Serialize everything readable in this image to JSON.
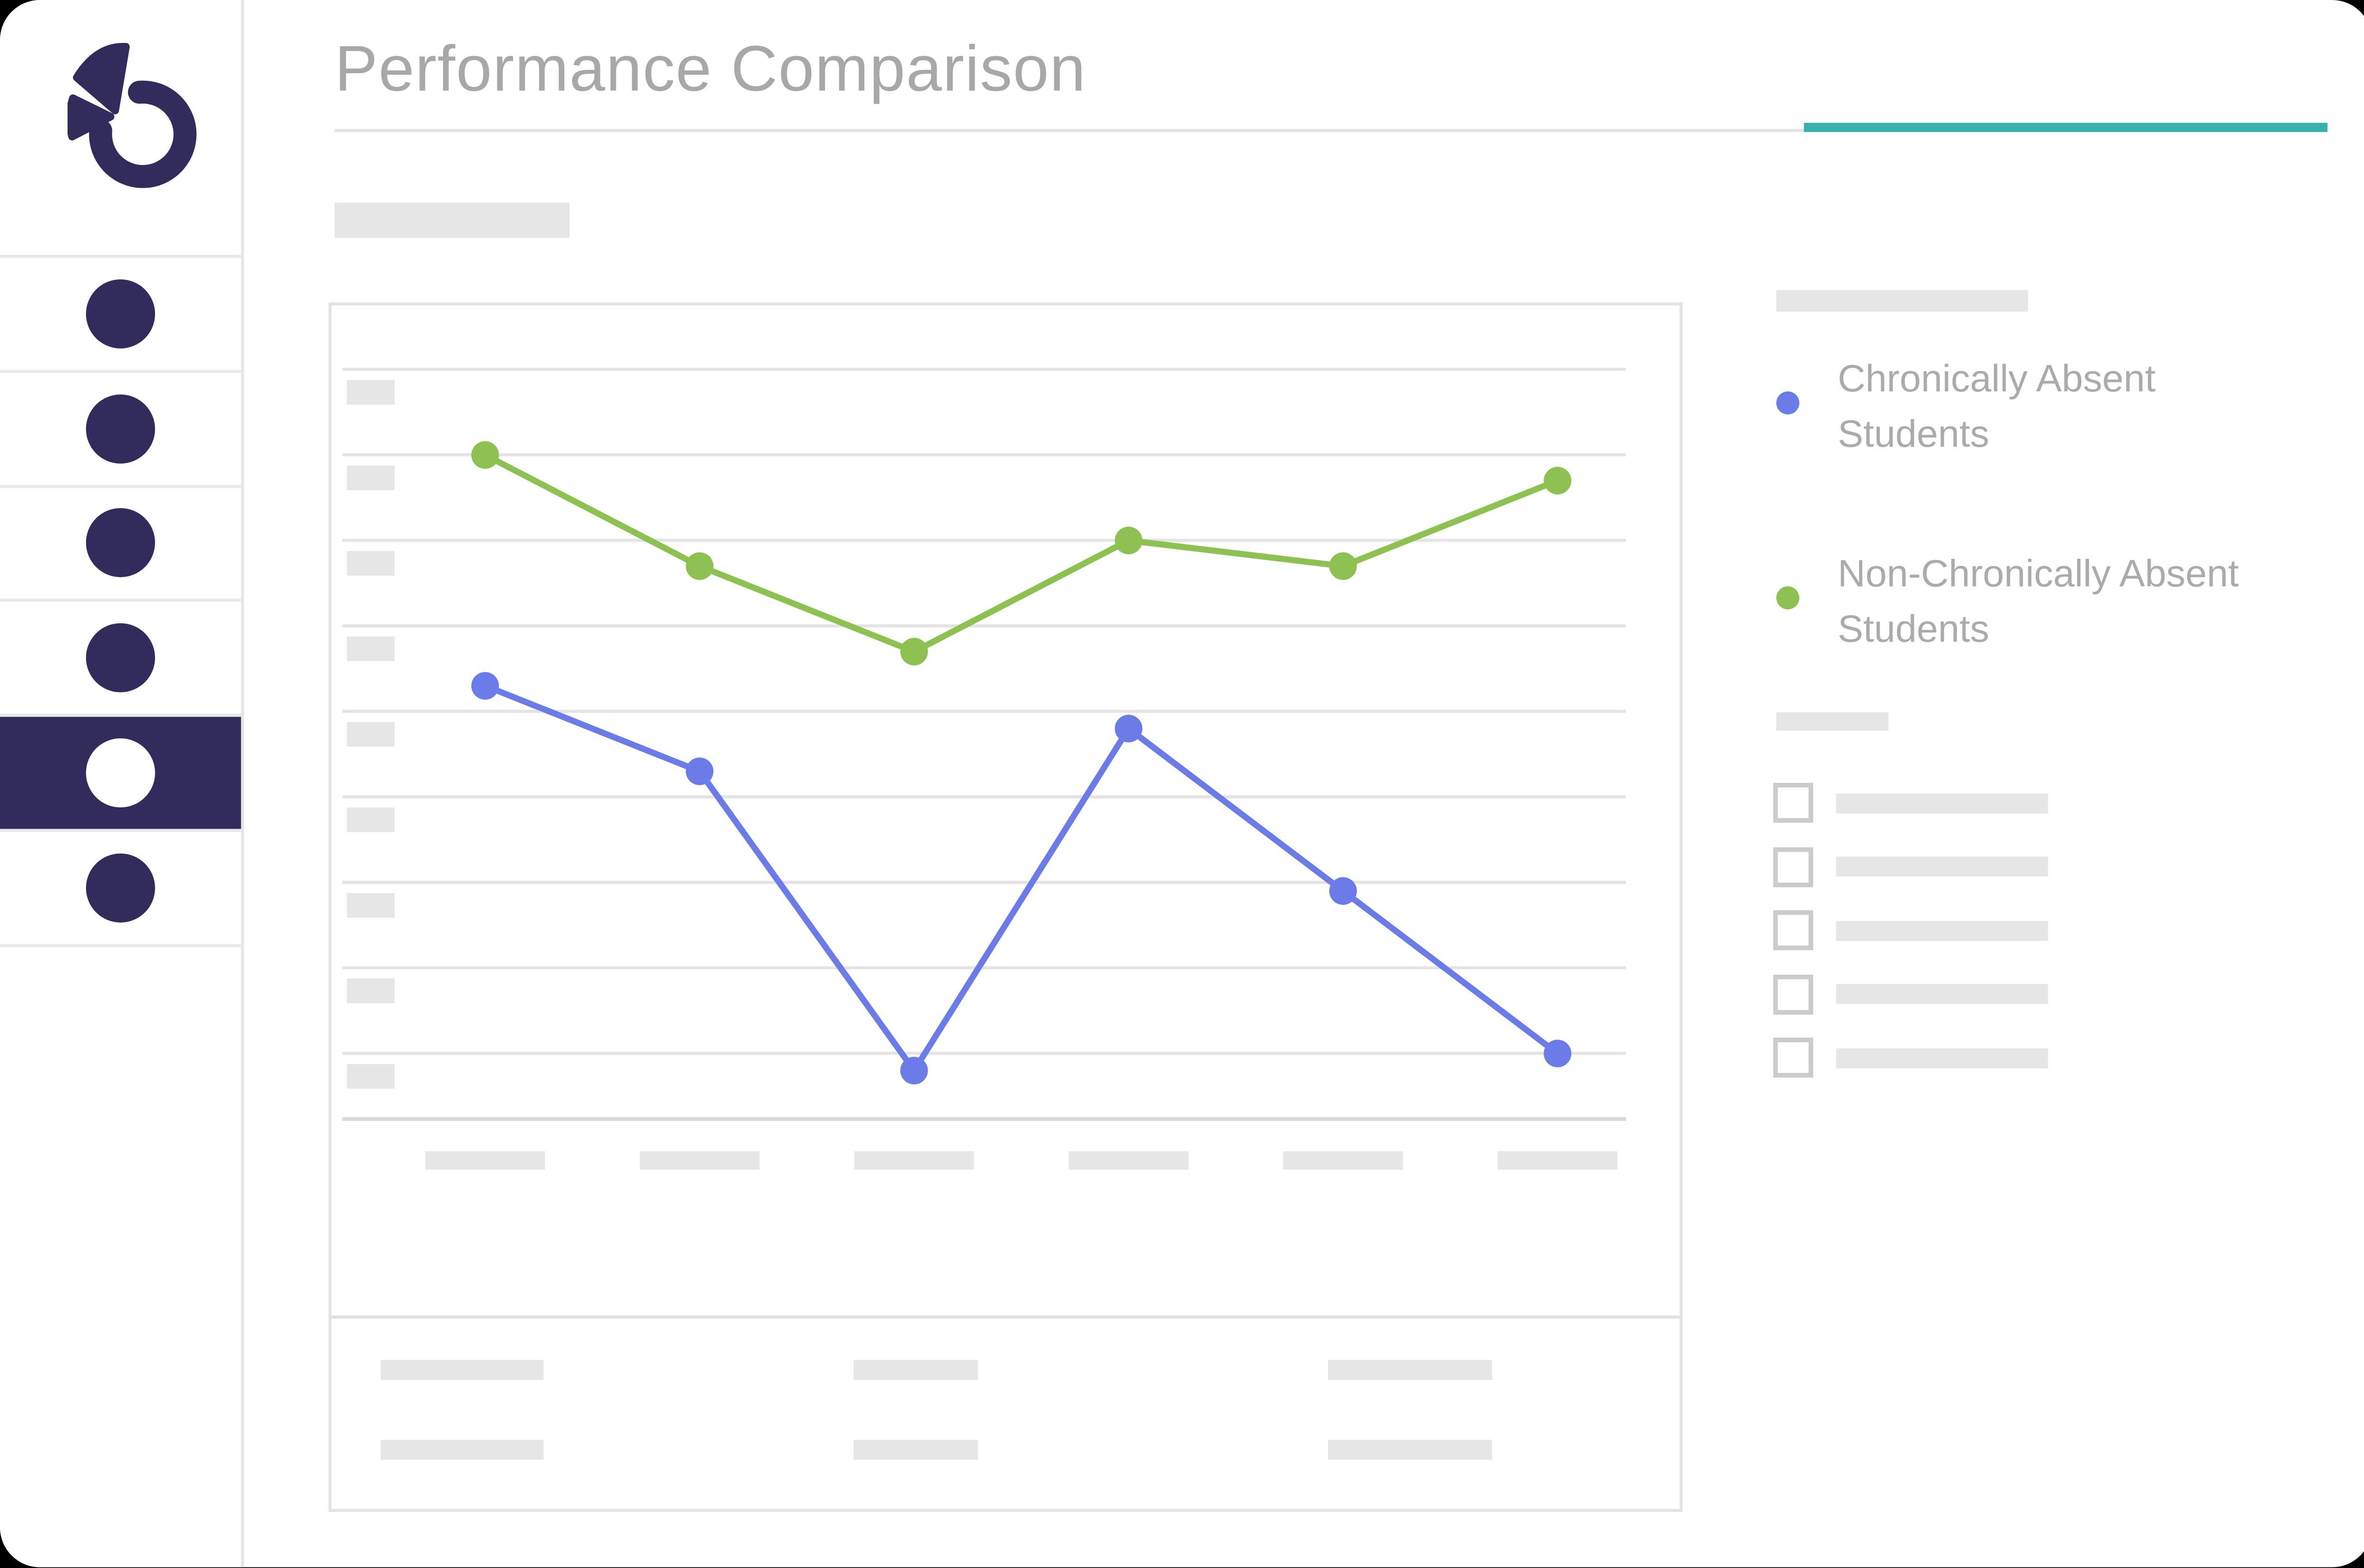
{
  "page": {
    "title": "Performance Comparison"
  },
  "header": {
    "title": "Performance Comparison"
  },
  "colors": {
    "brand_navy": "#322c5c",
    "accent_teal": "#39b0ab",
    "series_blue": "#6b7be8",
    "series_green": "#8dc152",
    "placeholder_gray": "#e6e6e6",
    "gridline_gray": "#e4e4e4",
    "text_gray": "#ababab",
    "title_gray": "#a8a8a8"
  },
  "sidebar": {
    "items": [
      {
        "id": "nav-1",
        "active": false
      },
      {
        "id": "nav-2",
        "active": false
      },
      {
        "id": "nav-3",
        "active": false
      },
      {
        "id": "nav-4",
        "active": false
      },
      {
        "id": "nav-5",
        "active": true
      },
      {
        "id": "nav-6",
        "active": false
      }
    ]
  },
  "filters": {
    "items": [
      {
        "checked": false
      },
      {
        "checked": false
      },
      {
        "checked": false
      },
      {
        "checked": false
      },
      {
        "checked": false
      }
    ]
  },
  "chart_data": {
    "type": "line",
    "title": "Performance Comparison",
    "categories": [
      "",
      "",
      "",
      "",
      "",
      ""
    ],
    "series": [
      {
        "name": "Chronically Absent Students",
        "color": "#6b7be8",
        "values": [
          53,
          43,
          8,
          48,
          29,
          10
        ]
      },
      {
        "name": "Non-Chronically Absent Students",
        "color": "#8dc152",
        "values": [
          80,
          67,
          57,
          70,
          67,
          77
        ]
      }
    ],
    "ylim": [
      0,
      100
    ],
    "y_gridline_step": 10,
    "grid": true,
    "legend_position": "right",
    "axis_labels": "placeholder bars (wireframe, no text)"
  }
}
